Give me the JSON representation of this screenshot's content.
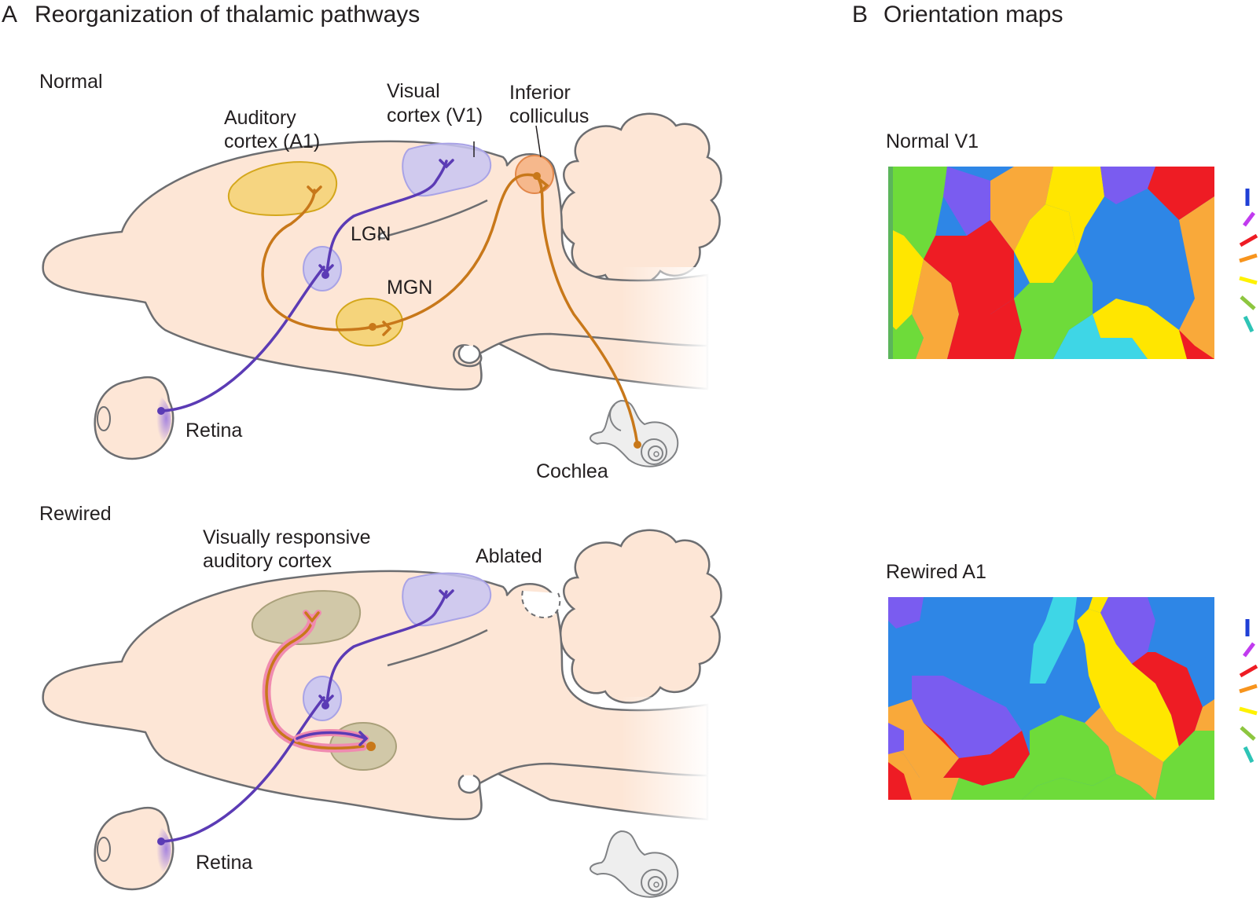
{
  "panel_a": {
    "letter": "A",
    "title": "Reorganization of thalamic pathways",
    "normal": {
      "heading": "Normal",
      "labels": {
        "auditory_cortex_1": "Auditory",
        "auditory_cortex_2": "cortex (A1)",
        "visual_cortex_1": "Visual",
        "visual_cortex_2": "cortex (V1)",
        "inferior_colliculus_1": "Inferior",
        "inferior_colliculus_2": "colliculus",
        "lgn": "LGN",
        "mgn": "MGN",
        "retina": "Retina",
        "cochlea": "Cochlea"
      }
    },
    "rewired": {
      "heading": "Rewired",
      "labels": {
        "vrac_1": "Visually responsive",
        "vrac_2": "auditory cortex",
        "ablated": "Ablated",
        "retina": "Retina"
      }
    }
  },
  "panel_b": {
    "letter": "B",
    "title": "Orientation maps",
    "normal_map_label": "Normal V1",
    "rewired_map_label": "Rewired A1",
    "orientation_key_colors": [
      "#1f3fd6",
      "#c13bef",
      "#ee1c24",
      "#f7941d",
      "#fff200",
      "#8dc63f",
      "#2ec4b6"
    ]
  },
  "colors": {
    "visual_pathway": "#5b3bb5",
    "auditory_pathway": "#c8781a",
    "brain_fill": "#fde6d6",
    "map_blue": "#2e86e6",
    "map_red": "#ee1c24",
    "map_yellow": "#ffe600",
    "map_green": "#6edb3a",
    "map_orange": "#f9a93a",
    "map_cyan": "#3ed6e6",
    "map_purple": "#7a5cf0"
  }
}
